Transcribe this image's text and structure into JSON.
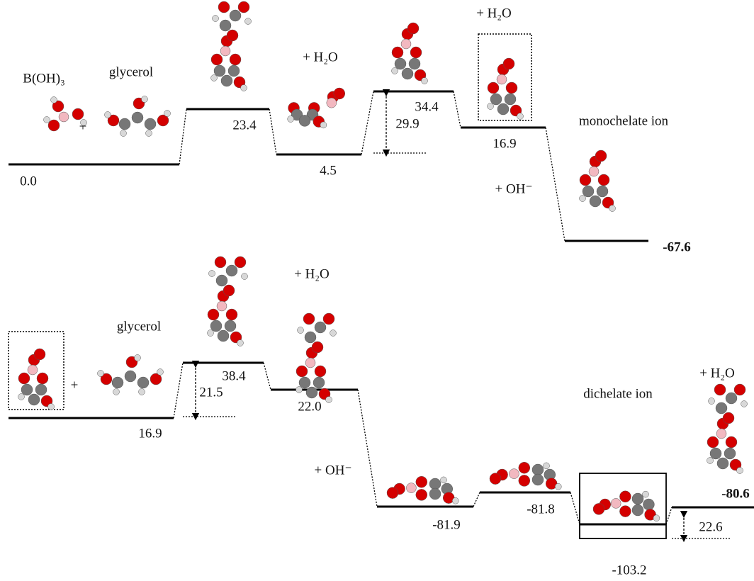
{
  "panels": [
    {
      "species_labels": [
        "B(OH)₃",
        "glycerol",
        "+",
        "+ H₂O",
        "+ H₂O",
        "monochelate ion",
        "+ OH⁻"
      ],
      "levels": [
        {
          "value": 0,
          "label": "0.0"
        },
        23.4,
        4.5,
        34.4,
        16.9,
        -67.6
      ],
      "barriers": [
        29.9
      ]
    },
    {
      "species_labels": [
        "glycerol",
        "+",
        "+ H₂O",
        "dichelate ion",
        "+ H₂O",
        "+ OH⁻"
      ],
      "levels": [
        16.9,
        38.4,
        {
          "value": 22,
          "label": "22.0"
        },
        -81.9,
        -81.8,
        -103.2,
        -80.6
      ],
      "barriers": [
        21.5,
        22.6
      ]
    }
  ]
}
